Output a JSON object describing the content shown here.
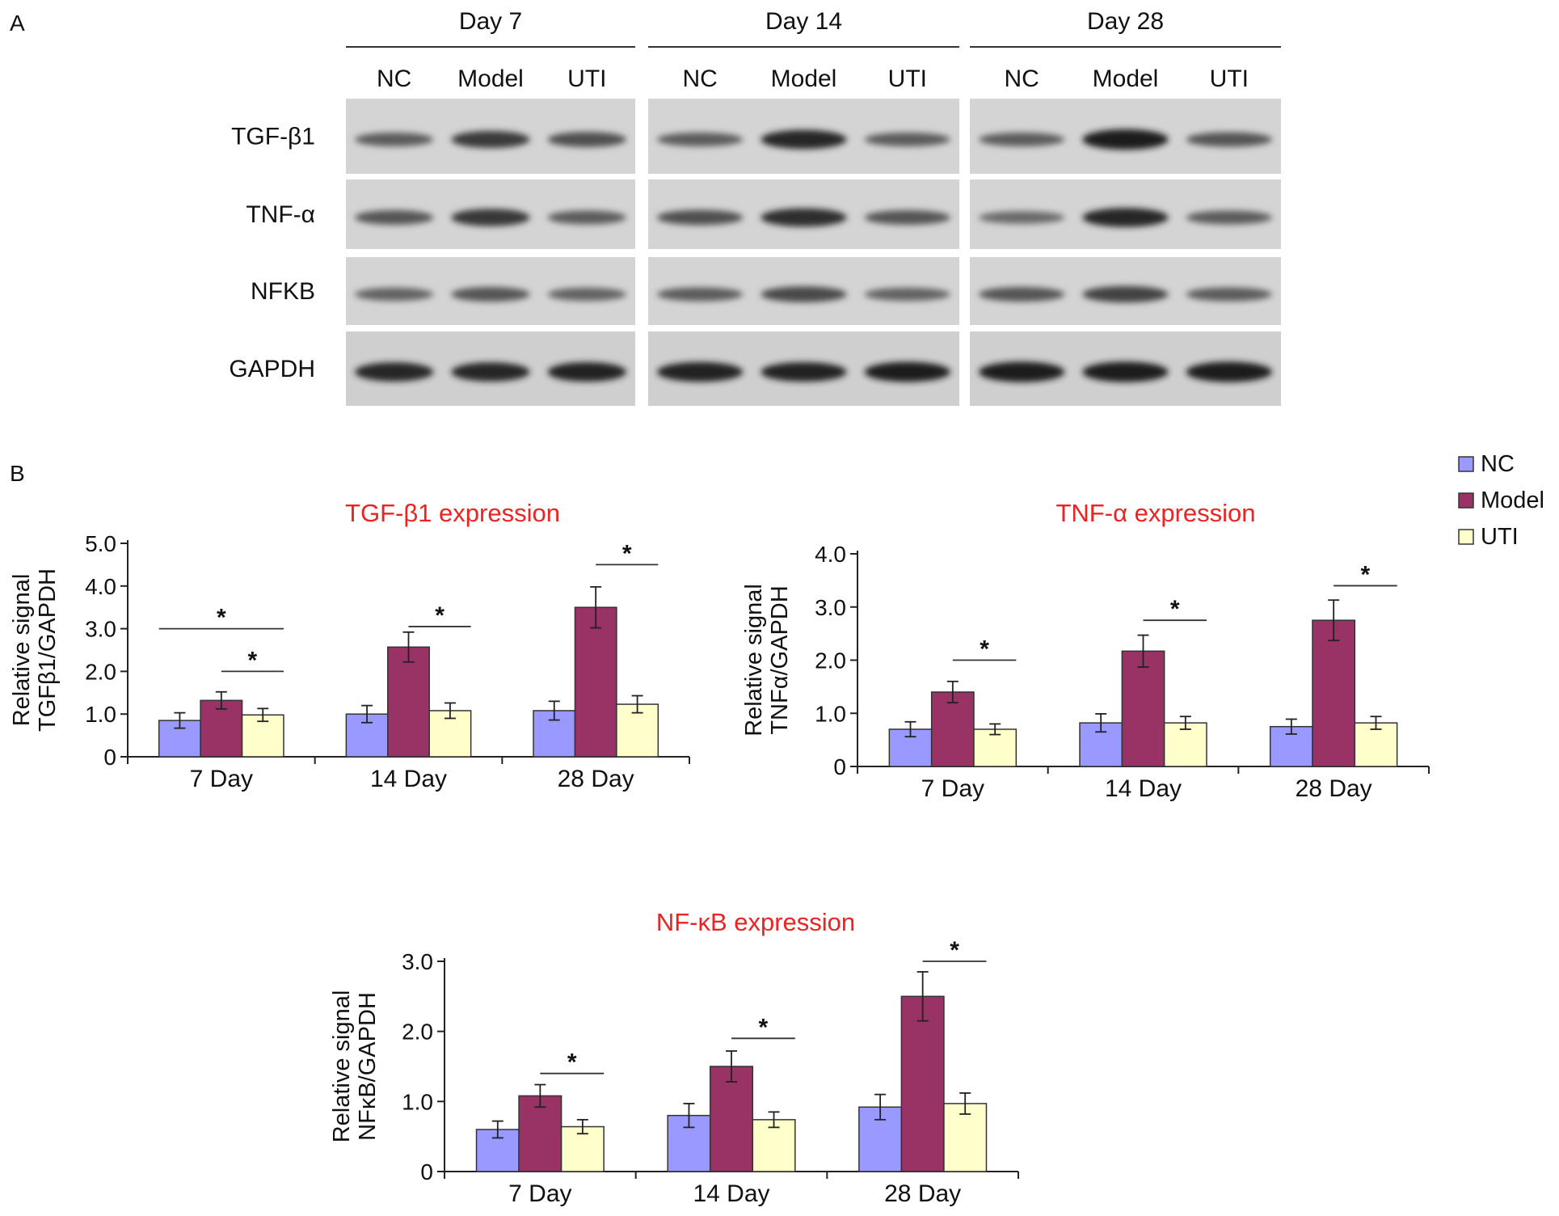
{
  "figure": {
    "panel_a": "A",
    "panel_b": "B",
    "western_blot": {
      "day_headers": [
        "Day 7",
        "Day 14",
        "Day 28"
      ],
      "lanes": [
        "NC",
        "Model",
        "UTI"
      ],
      "proteins": [
        "TGF-β1",
        "TNF-α",
        "NFKB",
        "GAPDH"
      ],
      "band_intensity": [
        [
          [
            0.45,
            0.7,
            0.55
          ],
          [
            0.45,
            0.85,
            0.45
          ],
          [
            0.45,
            0.95,
            0.5
          ]
        ],
        [
          [
            0.5,
            0.72,
            0.45
          ],
          [
            0.55,
            0.8,
            0.5
          ],
          [
            0.35,
            0.85,
            0.45
          ]
        ],
        [
          [
            0.4,
            0.5,
            0.4
          ],
          [
            0.45,
            0.6,
            0.4
          ],
          [
            0.5,
            0.65,
            0.45
          ]
        ],
        [
          [
            0.85,
            0.85,
            0.88
          ],
          [
            0.9,
            0.88,
            0.92
          ],
          [
            0.95,
            0.95,
            0.95
          ]
        ]
      ]
    }
  },
  "legend": {
    "items": [
      {
        "label": "NC",
        "color": "#9999ff"
      },
      {
        "label": "Model",
        "color": "#993366"
      },
      {
        "label": "UTI",
        "color": "#ffffcc"
      }
    ]
  },
  "chart_data": [
    {
      "type": "bar",
      "title": "TGF-β1 expression",
      "ylabel_line1": "Relative signal",
      "ylabel_line2": "TGFβ1/GAPDH",
      "categories": [
        "7 Day",
        "14 Day",
        "28 Day"
      ],
      "ylim": [
        0,
        5.0
      ],
      "yticks": [
        "0",
        "1.0",
        "2.0",
        "3.0",
        "4.0",
        "5.0"
      ],
      "series": [
        {
          "name": "NC",
          "values": [
            0.85,
            1.0,
            1.08
          ],
          "errors": [
            0.18,
            0.2,
            0.22
          ]
        },
        {
          "name": "Model",
          "values": [
            1.32,
            2.57,
            3.5
          ],
          "errors": [
            0.2,
            0.35,
            0.48
          ]
        },
        {
          "name": "UTI",
          "values": [
            0.98,
            1.08,
            1.23
          ],
          "errors": [
            0.15,
            0.18,
            0.2
          ]
        }
      ],
      "significance": [
        "*",
        "*",
        "*",
        "*"
      ]
    },
    {
      "type": "bar",
      "title": "TNF-α expression",
      "ylabel_line1": "Relative signal",
      "ylabel_line2": "TNFα/GAPDH",
      "categories": [
        "7 Day",
        "14 Day",
        "28 Day"
      ],
      "ylim": [
        0,
        4.0
      ],
      "yticks": [
        "0",
        "1.0",
        "2.0",
        "3.0",
        "4.0"
      ],
      "series": [
        {
          "name": "NC",
          "values": [
            0.7,
            0.82,
            0.75
          ],
          "errors": [
            0.14,
            0.17,
            0.14
          ]
        },
        {
          "name": "Model",
          "values": [
            1.4,
            2.17,
            2.75
          ],
          "errors": [
            0.2,
            0.3,
            0.38
          ]
        },
        {
          "name": "UTI",
          "values": [
            0.7,
            0.82,
            0.82
          ],
          "errors": [
            0.1,
            0.12,
            0.12
          ]
        }
      ],
      "significance": [
        "*",
        "*",
        "*"
      ]
    },
    {
      "type": "bar",
      "title": "NF-κB expression",
      "ylabel_line1": "Relative signal",
      "ylabel_line2": "NFκB/GAPDH",
      "categories": [
        "7 Day",
        "14 Day",
        "28 Day"
      ],
      "ylim": [
        0,
        3.0
      ],
      "yticks": [
        "0",
        "1.0",
        "2.0",
        "3.0"
      ],
      "series": [
        {
          "name": "NC",
          "values": [
            0.6,
            0.8,
            0.92
          ],
          "errors": [
            0.12,
            0.17,
            0.18
          ]
        },
        {
          "name": "Model",
          "values": [
            1.08,
            1.5,
            2.5
          ],
          "errors": [
            0.16,
            0.22,
            0.35
          ]
        },
        {
          "name": "UTI",
          "values": [
            0.64,
            0.74,
            0.97
          ],
          "errors": [
            0.1,
            0.11,
            0.15
          ]
        }
      ],
      "significance": [
        "*",
        "*",
        "*"
      ]
    }
  ]
}
